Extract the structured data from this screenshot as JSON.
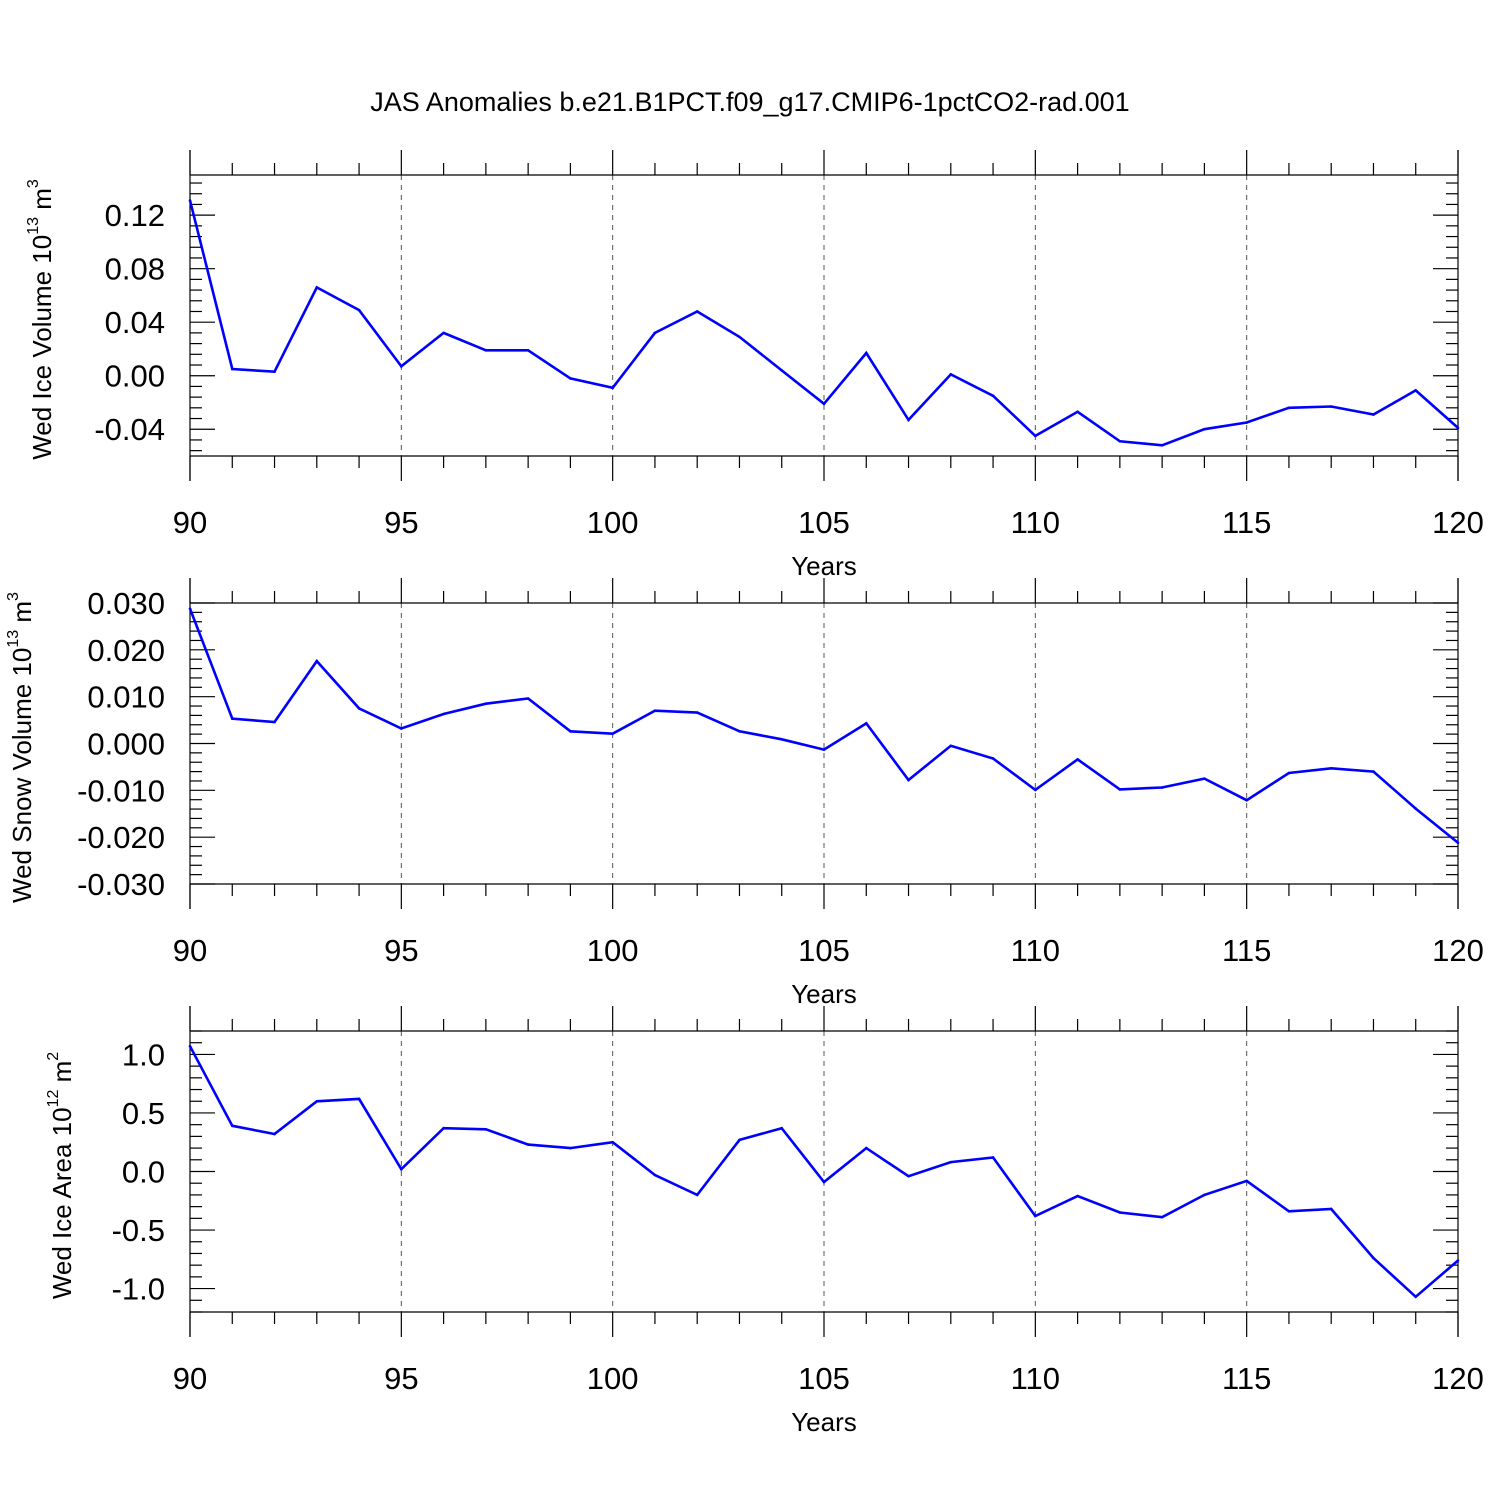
{
  "title": "JAS Anomalies b.e21.B1PCT.f09_g17.CMIP6-1pctCO2-rad.001",
  "colors": {
    "line": "#0000ff",
    "axis": "#000000",
    "grid": "#555555"
  },
  "chart_data": [
    {
      "type": "line",
      "ylabel": {
        "main": "Wed Ice Volume 10",
        "sup": "13",
        "unit": " m",
        "unit_sup": "3"
      },
      "xlabel": "Years",
      "xlim": [
        90,
        120
      ],
      "ylim": [
        -0.06,
        0.15
      ],
      "xticks": [
        90,
        95,
        100,
        105,
        110,
        115,
        120
      ],
      "xtick_labels": [
        "90",
        "95",
        "100",
        "105",
        "110",
        "115",
        "120"
      ],
      "yticks": [
        0.12,
        0.08,
        0.04,
        0.0,
        -0.04
      ],
      "ytick_labels": [
        "0.12",
        "0.08",
        "0.04",
        "0.00",
        "-0.04"
      ],
      "grid": "vertical dashed at major x ticks",
      "x": [
        90,
        91,
        92,
        93,
        94,
        95,
        96,
        97,
        98,
        99,
        100,
        101,
        102,
        103,
        104,
        105,
        106,
        107,
        108,
        109,
        110,
        111,
        112,
        113,
        114,
        115,
        116,
        117,
        118,
        119,
        120
      ],
      "values": [
        0.131,
        0.005,
        0.003,
        0.066,
        0.049,
        0.007,
        0.032,
        0.019,
        0.019,
        -0.002,
        -0.009,
        0.032,
        0.048,
        0.029,
        0.004,
        -0.021,
        0.017,
        -0.033,
        0.001,
        -0.015,
        -0.045,
        -0.027,
        -0.049,
        -0.052,
        -0.04,
        -0.035,
        -0.024,
        -0.023,
        -0.029,
        -0.011,
        -0.039
      ]
    },
    {
      "type": "line",
      "ylabel": {
        "main": "Wed Snow Volume 10",
        "sup": "13",
        "unit": " m",
        "unit_sup": "3"
      },
      "xlabel": "Years",
      "xlim": [
        90,
        120
      ],
      "ylim": [
        -0.03,
        0.03
      ],
      "xticks": [
        90,
        95,
        100,
        105,
        110,
        115,
        120
      ],
      "xtick_labels": [
        "90",
        "95",
        "100",
        "105",
        "110",
        "115",
        "120"
      ],
      "yticks": [
        0.03,
        0.02,
        0.01,
        0.0,
        -0.01,
        -0.02,
        -0.03
      ],
      "ytick_labels": [
        "0.030",
        "0.020",
        "0.010",
        "0.000",
        "-0.010",
        "-0.020",
        "-0.030"
      ],
      "grid": "vertical dashed at major x ticks",
      "x": [
        90,
        91,
        92,
        93,
        94,
        95,
        96,
        97,
        98,
        99,
        100,
        101,
        102,
        103,
        104,
        105,
        106,
        107,
        108,
        109,
        110,
        111,
        112,
        113,
        114,
        115,
        116,
        117,
        118,
        119,
        120
      ],
      "values": [
        0.0288,
        0.0053,
        0.0046,
        0.0176,
        0.0075,
        0.0032,
        0.0063,
        0.0085,
        0.0096,
        0.0026,
        0.0021,
        0.007,
        0.0066,
        0.0026,
        0.0009,
        -0.0013,
        0.0043,
        -0.0078,
        -0.0005,
        -0.0032,
        -0.0099,
        -0.0034,
        -0.0098,
        -0.0094,
        -0.0075,
        -0.0121,
        -0.0063,
        -0.0053,
        -0.006,
        -0.0139,
        -0.0212
      ]
    },
    {
      "type": "line",
      "ylabel": {
        "main": "Wed Ice Area 10",
        "sup": "12",
        "unit": " m",
        "unit_sup": "2"
      },
      "xlabel": "Years",
      "xlim": [
        90,
        120
      ],
      "ylim": [
        -1.2,
        1.2
      ],
      "xticks": [
        90,
        95,
        100,
        105,
        110,
        115,
        120
      ],
      "xtick_labels": [
        "90",
        "95",
        "100",
        "105",
        "110",
        "115",
        "120"
      ],
      "yticks": [
        1.0,
        0.5,
        0.0,
        -0.5,
        -1.0
      ],
      "ytick_labels": [
        "1.0",
        "0.5",
        "0.0",
        "-0.5",
        "-1.0"
      ],
      "grid": "vertical dashed at major x ticks",
      "x": [
        90,
        91,
        92,
        93,
        94,
        95,
        96,
        97,
        98,
        99,
        100,
        101,
        102,
        103,
        104,
        105,
        106,
        107,
        108,
        109,
        110,
        111,
        112,
        113,
        114,
        115,
        116,
        117,
        118,
        119,
        120
      ],
      "values": [
        1.07,
        0.39,
        0.32,
        0.6,
        0.62,
        0.02,
        0.37,
        0.36,
        0.23,
        0.2,
        0.25,
        -0.03,
        -0.2,
        0.27,
        0.37,
        -0.09,
        0.2,
        -0.04,
        0.08,
        0.12,
        -0.38,
        -0.21,
        -0.35,
        -0.39,
        -0.2,
        -0.08,
        -0.34,
        -0.32,
        -0.74,
        -1.07,
        -0.76
      ]
    }
  ]
}
